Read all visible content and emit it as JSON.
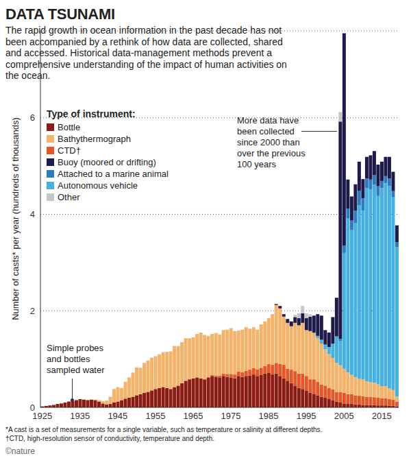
{
  "chart_data": {
    "type": "bar",
    "title": "DATA TSUNAMI",
    "subtitle": "The rapid growth in ocean information in the past decade has not been accompanied by a rethink of how data are collected, shared and accessed. Historical data-management methods prevent a comprehensive understanding of the impact of human activities on the ocean.",
    "y_label": "Number of casts* per year (hundreds of thousands)",
    "legend_title": "Type of instrument:",
    "legend": "top-left",
    "stacked": true,
    "grid": true,
    "ylim": [
      0,
      7.8
    ],
    "yticks": [
      0,
      2,
      4,
      6
    ],
    "categories": [
      "1925",
      null,
      null,
      null,
      null,
      null,
      null,
      null,
      null,
      null,
      "1935",
      null,
      null,
      null,
      null,
      null,
      null,
      null,
      null,
      null,
      "1945",
      null,
      null,
      null,
      null,
      null,
      null,
      null,
      null,
      null,
      "1955",
      null,
      null,
      null,
      null,
      null,
      null,
      null,
      null,
      null,
      "1965",
      null,
      null,
      null,
      null,
      null,
      null,
      null,
      null,
      null,
      "1975",
      null,
      null,
      null,
      null,
      null,
      null,
      null,
      null,
      null,
      "1985",
      null,
      null,
      null,
      null,
      null,
      null,
      null,
      null,
      null,
      "1995",
      null,
      null,
      null,
      null,
      null,
      null,
      null,
      null,
      null,
      "2005",
      null,
      null,
      null,
      null,
      null,
      null,
      null,
      null,
      null,
      "2015",
      null,
      null,
      null,
      null
    ],
    "series": [
      {
        "name": "Bottle",
        "color": "#8b1c13",
        "values": [
          0.02,
          0.03,
          0.04,
          0.05,
          0.07,
          0.08,
          0.1,
          0.12,
          0.13,
          0.15,
          0.17,
          0.16,
          0.15,
          0.16,
          0.15,
          0.12,
          0.08,
          0.06,
          0.07,
          0.1,
          0.12,
          0.15,
          0.18,
          0.2,
          0.22,
          0.25,
          0.27,
          0.3,
          0.32,
          0.35,
          0.38,
          0.4,
          0.42,
          0.4,
          0.38,
          0.42,
          0.45,
          0.5,
          0.55,
          0.58,
          0.6,
          0.62,
          0.6,
          0.58,
          0.62,
          0.65,
          0.63,
          0.62,
          0.65,
          0.63,
          0.62,
          0.6,
          0.65,
          0.63,
          0.65,
          0.66,
          0.68,
          0.65,
          0.67,
          0.7,
          0.72,
          0.68,
          0.7,
          0.65,
          0.6,
          0.55,
          0.5,
          0.45,
          0.4,
          0.38,
          0.35,
          0.3,
          0.28,
          0.25,
          0.22,
          0.2,
          0.18,
          0.15,
          0.12,
          0.1,
          0.08,
          0.07,
          0.07,
          0.06,
          0.06,
          0.05,
          0.05,
          0.05,
          0.05,
          0.04,
          0.04,
          0.04,
          0.03,
          0.03,
          0.02
        ]
      },
      {
        "name": "Bathythermograph",
        "color": "#f4b36a",
        "values": [
          0,
          0,
          0,
          0,
          0,
          0,
          0,
          0,
          0,
          0,
          0,
          0,
          0,
          0,
          0.01,
          0.03,
          0.05,
          0.08,
          0.15,
          0.28,
          0.3,
          0.25,
          0.35,
          0.42,
          0.5,
          0.58,
          0.55,
          0.62,
          0.65,
          0.68,
          0.68,
          0.7,
          0.72,
          0.75,
          0.78,
          0.85,
          0.82,
          0.85,
          0.88,
          0.85,
          0.85,
          0.9,
          0.95,
          0.92,
          0.85,
          0.85,
          0.88,
          0.85,
          0.9,
          0.92,
          0.95,
          0.9,
          0.85,
          0.88,
          0.9,
          0.85,
          0.85,
          0.82,
          0.9,
          0.92,
          0.95,
          1.05,
          1.2,
          1.15,
          1.0,
          0.95,
          0.9,
          1.0,
          1.0,
          1.05,
          0.95,
          1.0,
          0.95,
          0.9,
          0.85,
          0.75,
          0.7,
          0.65,
          0.6,
          0.55,
          0.5,
          0.45,
          0.4,
          0.38,
          0.35,
          0.35,
          0.32,
          0.3,
          0.3,
          0.28,
          0.25,
          0.25,
          0.22,
          0.2,
          0.1
        ]
      },
      {
        "name": "CTD†",
        "color": "#e2582b",
        "values": [
          0,
          0,
          0,
          0,
          0,
          0,
          0,
          0,
          0,
          0,
          0,
          0,
          0,
          0,
          0,
          0,
          0,
          0,
          0,
          0,
          0,
          0,
          0,
          0,
          0,
          0,
          0,
          0,
          0,
          0,
          0,
          0,
          0,
          0,
          0,
          0,
          0,
          0,
          0,
          0,
          0,
          0,
          0,
          0,
          0.01,
          0.02,
          0.03,
          0.04,
          0.05,
          0.06,
          0.07,
          0.08,
          0.09,
          0.1,
          0.11,
          0.12,
          0.13,
          0.14,
          0.15,
          0.16,
          0.18,
          0.2,
          0.22,
          0.25,
          0.28,
          0.25,
          0.28,
          0.3,
          0.3,
          0.32,
          0.3,
          0.28,
          0.3,
          0.28,
          0.25,
          0.25,
          0.22,
          0.22,
          0.2,
          0.22,
          0.22,
          0.2,
          0.2,
          0.18,
          0.18,
          0.18,
          0.17,
          0.17,
          0.16,
          0.16,
          0.15,
          0.15,
          0.14,
          0.13,
          0.1
        ]
      },
      {
        "name": "Buoy (moored or drifting)",
        "color": "#1e1b4b",
        "values": [
          0,
          0,
          0,
          0,
          0,
          0,
          0,
          0,
          0,
          0,
          0,
          0,
          0,
          0,
          0,
          0,
          0,
          0,
          0,
          0,
          0,
          0,
          0,
          0,
          0,
          0,
          0,
          0,
          0,
          0,
          0,
          0,
          0,
          0,
          0,
          0,
          0,
          0,
          0,
          0,
          0,
          0,
          0,
          0,
          0,
          0,
          0,
          0,
          0,
          0,
          0,
          0,
          0,
          0,
          0,
          0,
          0,
          0,
          0,
          0,
          0,
          0,
          0.02,
          0.05,
          0.05,
          0.08,
          0.1,
          0.12,
          0.15,
          0.2,
          0.25,
          0.3,
          0.35,
          0.45,
          0.5,
          0.3,
          0.3,
          0.55,
          0.8,
          4.5,
          4.4,
          0.6,
          0.5,
          0.55,
          0.6,
          0.4,
          0.45,
          0.5,
          0.5,
          0.45,
          0.4,
          0.4,
          0.45,
          0.4,
          0.35
        ]
      },
      {
        "name": "Attached to a marine animal",
        "color": "#2e7bbf",
        "values": [
          0,
          0,
          0,
          0,
          0,
          0,
          0,
          0,
          0,
          0,
          0,
          0,
          0,
          0,
          0,
          0,
          0,
          0,
          0,
          0,
          0,
          0,
          0,
          0,
          0,
          0,
          0,
          0,
          0,
          0,
          0,
          0,
          0,
          0,
          0,
          0,
          0,
          0,
          0,
          0,
          0,
          0,
          0,
          0,
          0,
          0,
          0,
          0,
          0,
          0,
          0,
          0,
          0,
          0,
          0,
          0,
          0,
          0,
          0,
          0,
          0,
          0,
          0,
          0,
          0,
          0,
          0,
          0,
          0,
          0,
          0,
          0,
          0,
          0,
          0,
          0,
          0,
          0,
          0,
          0.05,
          0.15,
          0.2,
          0.2,
          0.25,
          0.3,
          0.25,
          0.2,
          0.2,
          0.2,
          0.2,
          0.15,
          0.15,
          0.15,
          0.12,
          0.1
        ]
      },
      {
        "name": "Autonomous vehicle",
        "color": "#46b0e1",
        "values": [
          0,
          0,
          0,
          0,
          0,
          0,
          0,
          0,
          0,
          0,
          0,
          0,
          0,
          0,
          0,
          0,
          0,
          0,
          0,
          0,
          0,
          0,
          0,
          0,
          0,
          0,
          0,
          0,
          0,
          0,
          0,
          0,
          0,
          0,
          0,
          0,
          0,
          0,
          0,
          0,
          0,
          0,
          0,
          0,
          0,
          0,
          0,
          0,
          0,
          0,
          0,
          0,
          0,
          0,
          0,
          0,
          0,
          0,
          0,
          0,
          0,
          0,
          0,
          0,
          0,
          0,
          0,
          0,
          0,
          0,
          0,
          0,
          0.02,
          0.05,
          0.08,
          0.1,
          0.15,
          0.3,
          0.55,
          0.5,
          2.4,
          3.2,
          3.0,
          3.2,
          3.6,
          3.5,
          4.0,
          4.0,
          4.1,
          3.9,
          4.1,
          4.2,
          4.2,
          4.0,
          3.1
        ]
      },
      {
        "name": "Other",
        "color": "#c3c7cc",
        "values": [
          0,
          0,
          0,
          0,
          0,
          0,
          0,
          0,
          0,
          0,
          0,
          0,
          0,
          0,
          0,
          0,
          0,
          0,
          0,
          0,
          0,
          0,
          0,
          0,
          0,
          0,
          0,
          0,
          0,
          0,
          0,
          0,
          0,
          0,
          0,
          0,
          0,
          0,
          0,
          0,
          0,
          0,
          0,
          0,
          0,
          0,
          0,
          0,
          0,
          0,
          0,
          0,
          0,
          0,
          0,
          0,
          0,
          0,
          0,
          0,
          0,
          0,
          0,
          0,
          0,
          0,
          0,
          0.05,
          0.1,
          0.15,
          0.1,
          0.05,
          0,
          0,
          0,
          0,
          0,
          0,
          0,
          0.2,
          0,
          0,
          0,
          0,
          0,
          0,
          0,
          0,
          0,
          0,
          0,
          0,
          0,
          0,
          0
        ]
      }
    ],
    "annotations": [
      "More data have been collected since 2000 than over the previous 100 years",
      "Simple probes and bottles sampled water"
    ],
    "footnotes": [
      "*A cast is a set of measurements for a single variable, such as temperature or salinity at different depths.",
      "†CTD, high-resolution sensor of conductivity, temperature and depth."
    ],
    "credit": "©nature"
  }
}
